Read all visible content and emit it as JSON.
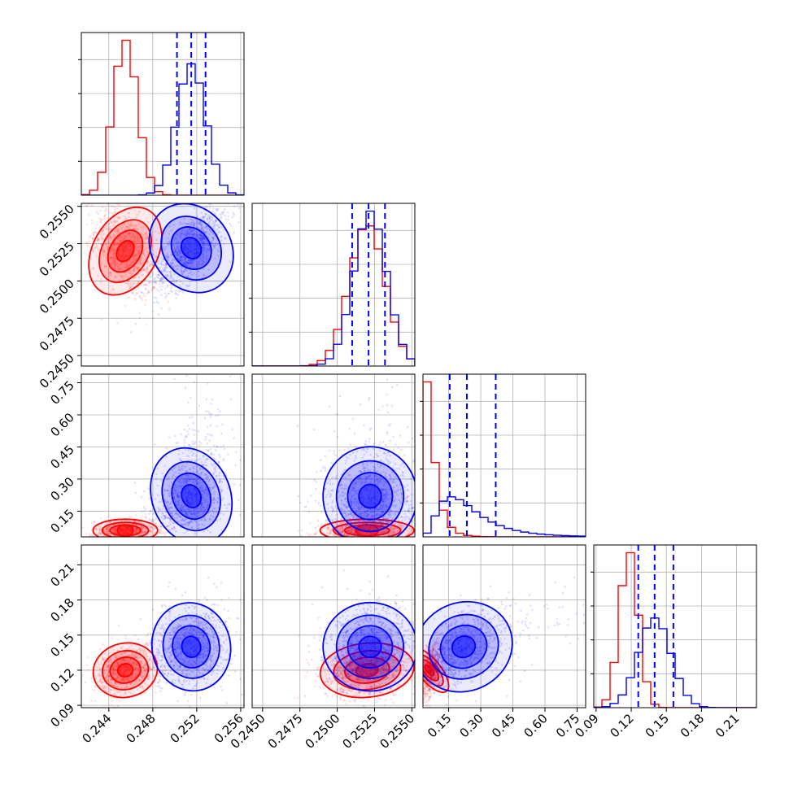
{
  "chart_data": {
    "type": "corner",
    "title": "",
    "grid": true,
    "colors": {
      "red": "#ff0000",
      "blue": "#0000ff"
    },
    "series": [
      {
        "color": "#ff0000",
        "means": [
          0.2455,
          0.252,
          0.06,
          0.118
        ],
        "sds": [
          0.0011,
          0.0012,
          0.02,
          0.008
        ],
        "scatter_means": [
          0.2455,
          0.252,
          0.06,
          0.12
        ],
        "scatter_sds": [
          0.0014,
          0.0015,
          0.025,
          0.011
        ],
        "scatter_rho": [
          [
            1,
            -0.45,
            0.1,
            0.3
          ],
          [
            -0.45,
            1,
            0.1,
            0.2
          ],
          [
            0.1,
            0.1,
            1,
            0.4
          ],
          [
            0.3,
            0.2,
            0.4,
            1
          ]
        ],
        "quantiles": null
      },
      {
        "color": "#0000ff",
        "means": [
          0.2515,
          0.2522,
          0.22,
          0.14
        ],
        "sds": [
          0.0013,
          0.0011,
          0.09,
          0.014
        ],
        "scatter_means": [
          0.2515,
          0.2522,
          0.22,
          0.14
        ],
        "scatter_sds": [
          0.0017,
          0.0015,
          0.11,
          0.018
        ],
        "scatter_rho": [
          [
            1,
            0.7,
            0.35,
            0.2
          ],
          [
            0.7,
            1,
            0.1,
            0.15
          ],
          [
            0.35,
            0.1,
            1,
            0.55
          ],
          [
            0.2,
            0.15,
            0.55,
            1
          ]
        ],
        "quantiles": [
          [
            0.2502,
            0.2515,
            0.2528
          ],
          [
            0.251,
            0.2521,
            0.2532
          ],
          [
            0.155,
            0.235,
            0.37
          ],
          [
            0.126,
            0.14,
            0.156
          ]
        ]
      }
    ],
    "axes": [
      {
        "range": [
          0.2415,
          0.2563
        ],
        "ticks": [
          0.244,
          0.248,
          0.252,
          0.256
        ],
        "tick_labels": [
          "0.244",
          "0.248",
          "0.252",
          "0.256"
        ]
      },
      {
        "range": [
          0.2443,
          0.2552
        ],
        "ticks": [
          0.245,
          0.2475,
          0.25,
          0.2525,
          0.255
        ],
        "tick_labels": [
          "0.2450",
          "0.2475",
          "0.2500",
          "0.2525",
          "0.2550"
        ]
      },
      {
        "range": [
          0.03,
          0.79
        ],
        "ticks": [
          0.15,
          0.3,
          0.45,
          0.6,
          0.75
        ],
        "tick_labels": [
          "0.15",
          "0.30",
          "0.45",
          "0.60",
          "0.75"
        ]
      },
      {
        "range": [
          0.088,
          0.227
        ],
        "ticks": [
          0.09,
          0.12,
          0.15,
          0.18,
          0.21
        ],
        "tick_labels": [
          "0.09",
          "0.12",
          "0.15",
          "0.18",
          "0.21"
        ]
      }
    ]
  }
}
